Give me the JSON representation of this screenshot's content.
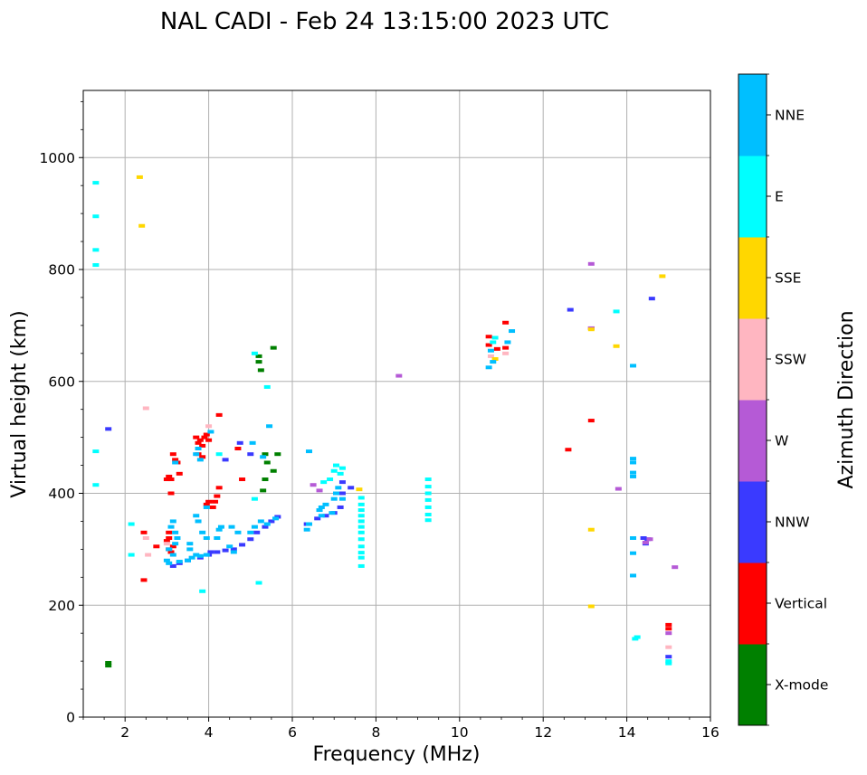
{
  "chart_data": {
    "type": "scatter",
    "title": "NAL CADI - Feb 24 13:15:00 2023 UTC",
    "xlabel": "Frequency (MHz)",
    "ylabel": "Virtual height (km)",
    "xlim": [
      1,
      16
    ],
    "ylim": [
      0,
      1120
    ],
    "xticks": [
      2,
      4,
      6,
      8,
      10,
      12,
      14,
      16
    ],
    "yticks": [
      0,
      200,
      400,
      600,
      800,
      1000
    ],
    "grid": true,
    "colorbar": {
      "title": "Azimuth Direction",
      "categories": [
        {
          "name": "X-mode",
          "color": "#008000"
        },
        {
          "name": "Vertical",
          "color": "#ff0000"
        },
        {
          "name": "NNW",
          "color": "#3a3aff"
        },
        {
          "name": "W",
          "color": "#b55ad6"
        },
        {
          "name": "SSW",
          "color": "#ffb6c1"
        },
        {
          "name": "SSE",
          "color": "#ffd700"
        },
        {
          "name": "E",
          "color": "#00ffff"
        },
        {
          "name": "NNE",
          "color": "#00bfff"
        }
      ]
    },
    "series": [
      {
        "name": "X-mode",
        "points": [
          [
            1.6,
            92
          ],
          [
            1.6,
            97
          ],
          [
            5.2,
            645
          ],
          [
            5.2,
            635
          ],
          [
            5.25,
            620
          ],
          [
            5.55,
            660
          ],
          [
            5.4,
            455
          ],
          [
            5.35,
            470
          ],
          [
            5.55,
            440
          ],
          [
            5.35,
            425
          ],
          [
            5.65,
            470
          ],
          [
            5.3,
            405
          ]
        ]
      },
      {
        "name": "Vertical",
        "points": [
          [
            3.0,
            425
          ],
          [
            3.05,
            430
          ],
          [
            3.1,
            425
          ],
          [
            3.1,
            400
          ],
          [
            3.15,
            470
          ],
          [
            3.2,
            460
          ],
          [
            3.25,
            455
          ],
          [
            3.3,
            435
          ],
          [
            3.7,
            500
          ],
          [
            3.75,
            490
          ],
          [
            3.8,
            495
          ],
          [
            3.85,
            485
          ],
          [
            3.9,
            500
          ],
          [
            3.95,
            505
          ],
          [
            4.0,
            495
          ],
          [
            3.75,
            470
          ],
          [
            3.85,
            465
          ],
          [
            4.0,
            385
          ],
          [
            4.1,
            375
          ],
          [
            4.2,
            395
          ],
          [
            4.25,
            410
          ],
          [
            4.25,
            540
          ],
          [
            4.15,
            385
          ],
          [
            3.95,
            380
          ],
          [
            4.8,
            425
          ],
          [
            4.7,
            480
          ],
          [
            3.05,
            300
          ],
          [
            3.0,
            315
          ],
          [
            3.1,
            295
          ],
          [
            3.15,
            305
          ],
          [
            3.05,
            320
          ],
          [
            3.05,
            330
          ],
          [
            2.45,
            330
          ],
          [
            2.75,
            305
          ],
          [
            2.45,
            245
          ],
          [
            10.7,
            665
          ],
          [
            10.7,
            680
          ],
          [
            10.9,
            658
          ],
          [
            11.1,
            705
          ],
          [
            11.1,
            660
          ],
          [
            12.6,
            478
          ],
          [
            13.15,
            530
          ],
          [
            13.15,
            695
          ],
          [
            15.0,
            165
          ],
          [
            15.0,
            158
          ]
        ]
      },
      {
        "name": "NNW",
        "points": [
          [
            1.6,
            515
          ],
          [
            3.15,
            270
          ],
          [
            3.3,
            275
          ],
          [
            3.5,
            280
          ],
          [
            3.8,
            285
          ],
          [
            4.0,
            290
          ],
          [
            4.2,
            295
          ],
          [
            4.4,
            298
          ],
          [
            4.6,
            300
          ],
          [
            4.8,
            308
          ],
          [
            5.0,
            318
          ],
          [
            5.15,
            330
          ],
          [
            5.35,
            340
          ],
          [
            5.5,
            350
          ],
          [
            5.65,
            358
          ],
          [
            6.35,
            345
          ],
          [
            6.6,
            355
          ],
          [
            6.8,
            360
          ],
          [
            7.0,
            365
          ],
          [
            7.15,
            375
          ],
          [
            7.2,
            400
          ],
          [
            7.2,
            420
          ],
          [
            7.4,
            410
          ],
          [
            5.0,
            470
          ],
          [
            4.75,
            490
          ],
          [
            4.05,
            295
          ],
          [
            4.4,
            460
          ],
          [
            12.65,
            728
          ],
          [
            14.6,
            748
          ],
          [
            14.4,
            320
          ],
          [
            14.5,
            318
          ],
          [
            14.45,
            310
          ],
          [
            15.0,
            108
          ]
        ]
      },
      {
        "name": "W",
        "points": [
          [
            8.55,
            610
          ],
          [
            13.15,
            810
          ],
          [
            13.15,
            695
          ],
          [
            13.8,
            408
          ],
          [
            15.15,
            268
          ],
          [
            14.45,
            312
          ],
          [
            14.55,
            318
          ],
          [
            15.0,
            150
          ],
          [
            6.65,
            405
          ],
          [
            6.5,
            415
          ]
        ]
      },
      {
        "name": "SSW",
        "points": [
          [
            2.5,
            552
          ],
          [
            2.5,
            320
          ],
          [
            2.55,
            290
          ],
          [
            3.0,
            310
          ],
          [
            10.75,
            645
          ],
          [
            11.1,
            650
          ],
          [
            15.0,
            125
          ],
          [
            4.0,
            520
          ]
        ]
      },
      {
        "name": "SSE",
        "points": [
          [
            2.35,
            965
          ],
          [
            2.4,
            878
          ],
          [
            13.15,
            693
          ],
          [
            13.75,
            663
          ],
          [
            13.15,
            335
          ],
          [
            13.15,
            198
          ],
          [
            14.85,
            788
          ],
          [
            10.85,
            640
          ],
          [
            7.6,
            407
          ]
        ]
      },
      {
        "name": "E",
        "points": [
          [
            1.3,
            955
          ],
          [
            1.3,
            895
          ],
          [
            1.3,
            835
          ],
          [
            1.3,
            808
          ],
          [
            1.3,
            475
          ],
          [
            1.3,
            415
          ],
          [
            2.15,
            345
          ],
          [
            2.15,
            290
          ],
          [
            5.4,
            590
          ],
          [
            5.1,
            650
          ],
          [
            5.1,
            390
          ],
          [
            5.2,
            240
          ],
          [
            3.85,
            225
          ],
          [
            9.25,
            425
          ],
          [
            9.25,
            412
          ],
          [
            9.25,
            400
          ],
          [
            9.25,
            388
          ],
          [
            9.25,
            375
          ],
          [
            9.25,
            362
          ],
          [
            9.25,
            352
          ],
          [
            7.65,
            392
          ],
          [
            7.65,
            380
          ],
          [
            7.65,
            370
          ],
          [
            7.65,
            360
          ],
          [
            7.65,
            350
          ],
          [
            7.65,
            340
          ],
          [
            7.65,
            330
          ],
          [
            7.65,
            318
          ],
          [
            7.65,
            305
          ],
          [
            7.65,
            294
          ],
          [
            7.65,
            285
          ],
          [
            7.65,
            270
          ],
          [
            7.0,
            440
          ],
          [
            7.05,
            450
          ],
          [
            7.15,
            435
          ],
          [
            6.9,
            425
          ],
          [
            6.75,
            420
          ],
          [
            7.2,
            445
          ],
          [
            13.75,
            725
          ],
          [
            14.2,
            140
          ],
          [
            14.25,
            143
          ],
          [
            15.0,
            100
          ],
          [
            15.0,
            96
          ],
          [
            10.8,
            670
          ],
          [
            10.85,
            678
          ],
          [
            4.25,
            470
          ]
        ]
      },
      {
        "name": "NNE",
        "points": [
          [
            3.0,
            280
          ],
          [
            3.05,
            275
          ],
          [
            3.15,
            290
          ],
          [
            3.2,
            310
          ],
          [
            3.25,
            320
          ],
          [
            3.2,
            330
          ],
          [
            3.1,
            340
          ],
          [
            3.15,
            350
          ],
          [
            3.05,
            300
          ],
          [
            3.3,
            278
          ],
          [
            3.5,
            280
          ],
          [
            3.6,
            285
          ],
          [
            3.7,
            290
          ],
          [
            3.8,
            288
          ],
          [
            3.95,
            290
          ],
          [
            3.7,
            360
          ],
          [
            3.75,
            350
          ],
          [
            3.85,
            330
          ],
          [
            3.95,
            375
          ],
          [
            3.55,
            310
          ],
          [
            3.55,
            300
          ],
          [
            3.95,
            320
          ],
          [
            4.2,
            320
          ],
          [
            4.25,
            335
          ],
          [
            4.3,
            340
          ],
          [
            4.55,
            340
          ],
          [
            4.7,
            330
          ],
          [
            4.5,
            305
          ],
          [
            4.6,
            295
          ],
          [
            5.0,
            330
          ],
          [
            5.1,
            340
          ],
          [
            5.25,
            350
          ],
          [
            5.4,
            345
          ],
          [
            5.6,
            355
          ],
          [
            6.35,
            335
          ],
          [
            6.4,
            345
          ],
          [
            6.7,
            360
          ],
          [
            6.7,
            375
          ],
          [
            6.8,
            380
          ],
          [
            6.65,
            370
          ],
          [
            7.0,
            390
          ],
          [
            7.05,
            400
          ],
          [
            7.1,
            410
          ],
          [
            6.95,
            365
          ],
          [
            7.2,
            390
          ],
          [
            6.4,
            475
          ],
          [
            3.7,
            470
          ],
          [
            3.75,
            480
          ],
          [
            3.8,
            460
          ],
          [
            5.05,
            490
          ],
          [
            5.3,
            465
          ],
          [
            5.45,
            520
          ],
          [
            14.15,
            628
          ],
          [
            14.15,
            462
          ],
          [
            14.15,
            455
          ],
          [
            14.15,
            437
          ],
          [
            14.15,
            430
          ],
          [
            14.15,
            320
          ],
          [
            14.15,
            293
          ],
          [
            14.15,
            253
          ],
          [
            10.7,
            625
          ],
          [
            10.75,
            655
          ],
          [
            10.8,
            635
          ],
          [
            11.25,
            690
          ],
          [
            11.15,
            670
          ],
          [
            4.05,
            510
          ],
          [
            3.2,
            455
          ]
        ]
      }
    ]
  }
}
